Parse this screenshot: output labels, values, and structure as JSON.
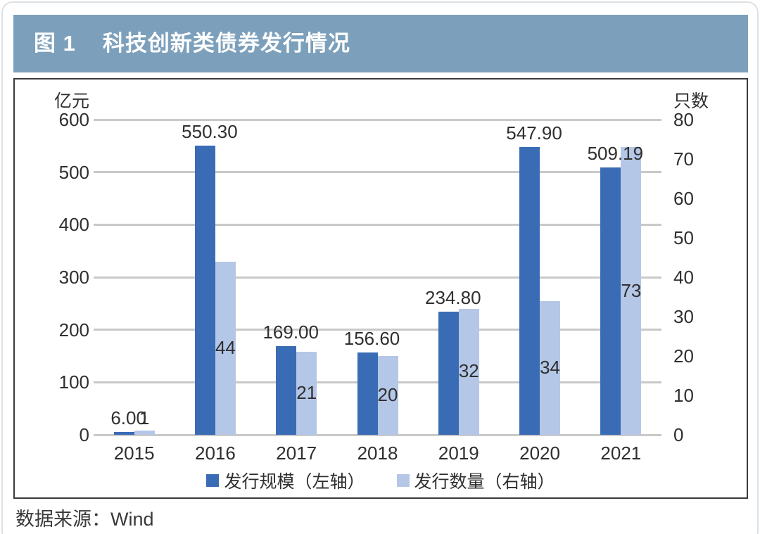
{
  "figure": {
    "label": "图 1",
    "title": "科技创新类债券发行情况"
  },
  "source": "数据来源：Wind",
  "colors": {
    "title_bar": "#7CA0BC",
    "title_text": "#FFFFFF",
    "bar_primary": "#3A6CB5",
    "bar_secondary": "#B4C7E7",
    "grid": "#C9C9C9",
    "text": "#2F2F2F",
    "box_border": "#3A3A3A",
    "page_border": "#DDE1E4"
  },
  "chart_data": {
    "type": "bar",
    "title": "科技创新类债券发行情况",
    "categories": [
      "2015",
      "2016",
      "2017",
      "2018",
      "2019",
      "2020",
      "2021"
    ],
    "series": [
      {
        "name": "发行规模（左轴）",
        "axis": "left",
        "values": [
          6.0,
          550.3,
          169.0,
          156.6,
          234.8,
          547.9,
          509.19
        ],
        "labels": [
          "6.00",
          "550.30",
          "169.00",
          "156.60",
          "234.80",
          "547.90",
          "509.19"
        ],
        "color": "#3A6CB5"
      },
      {
        "name": "发行数量（右轴）",
        "axis": "right",
        "values": [
          1,
          44,
          21,
          20,
          32,
          34,
          73
        ],
        "labels": [
          "1",
          "44",
          "21",
          "20",
          "32",
          "34",
          "73"
        ],
        "color": "#B4C7E7"
      }
    ],
    "left_axis": {
      "label": "亿元",
      "min": 0,
      "max": 600,
      "step": 100,
      "ticks": [
        "600",
        "500",
        "400",
        "300",
        "200",
        "100",
        "0"
      ]
    },
    "right_axis": {
      "label": "只数",
      "min": 0,
      "max": 80,
      "step": 10,
      "ticks": [
        "80",
        "70",
        "60",
        "50",
        "40",
        "30",
        "20",
        "10",
        "0"
      ]
    },
    "grid": true,
    "legend_position": "bottom"
  }
}
